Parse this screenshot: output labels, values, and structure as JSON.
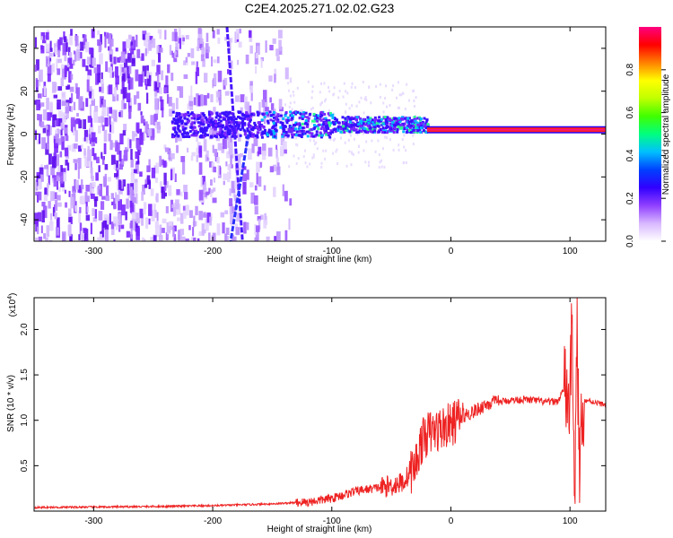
{
  "title": "C2E4.2025.271.02.02.G23",
  "chart_data": [
    {
      "type": "heatmap",
      "xlabel": "Height of straight line (km)",
      "ylabel": "Frequency (Hz)",
      "xlim": [
        -350,
        130
      ],
      "ylim": [
        -50,
        50
      ],
      "xticks": [
        -300,
        -200,
        -100,
        0,
        100
      ],
      "yticks": [
        -40,
        -20,
        0,
        20,
        40
      ],
      "colorbar": {
        "label": "Normalized spectral amplitude",
        "range": [
          0,
          1
        ],
        "ticks": [
          "0.0",
          "0.2",
          "0.4",
          "0.6",
          "0.8"
        ],
        "colors": [
          "#ffffff",
          "#d8b8ff",
          "#9040ff",
          "#3000ff",
          "#0040ff",
          "#00c0ff",
          "#00ff80",
          "#40ff00",
          "#c0ff00",
          "#ffff00",
          "#ff8000",
          "#ff0000",
          "#ff0080"
        ]
      },
      "features": {
        "tone_line": {
          "x_range": [
            -20,
            130
          ],
          "frequency": 2
        },
        "signal_band": {
          "x_range": [
            -235,
            -20
          ],
          "frequency_center": 5,
          "half_width": 6
        },
        "chirp_a": {
          "points": [
            [
              -188,
              50
            ],
            [
              -175,
              -50
            ]
          ]
        },
        "chirp_b": {
          "points": [
            [
              -170,
              0
            ],
            [
              -185,
              -50
            ]
          ]
        }
      }
    },
    {
      "type": "line",
      "xlabel": "Height of straight line (km)",
      "ylabel": "SNR (10 * v/v)",
      "yscale_label": "(x10",
      "yscale_exp": "4",
      "xlim": [
        -350,
        130
      ],
      "ylim": [
        0,
        2.35
      ],
      "xticks": [
        -300,
        -200,
        -100,
        0,
        100
      ],
      "yticks": [
        0.5,
        1.0,
        1.5,
        2.0
      ],
      "ytick_labels": [
        "0.5",
        "1.0",
        "1.5",
        "2.0"
      ],
      "series": [
        {
          "color": "#ee2222",
          "x": [
            -350,
            -300,
            -250,
            -200,
            -150,
            -120,
            -100,
            -80,
            -60,
            -50,
            -40,
            -30,
            -25,
            -20,
            -10,
            0,
            10,
            20,
            30,
            40,
            50,
            60,
            70,
            80,
            90,
            95,
            100,
            102,
            104,
            106,
            108,
            110,
            115,
            120,
            130
          ],
          "y": [
            0.04,
            0.045,
            0.05,
            0.06,
            0.08,
            0.1,
            0.14,
            0.22,
            0.26,
            0.28,
            0.32,
            0.5,
            0.75,
            0.85,
            0.9,
            0.95,
            1.05,
            1.1,
            1.18,
            1.2,
            1.22,
            1.23,
            1.22,
            1.2,
            1.21,
            1.35,
            1.2,
            2.2,
            0.1,
            1.9,
            0.4,
            1.2,
            1.22,
            1.2,
            1.17
          ]
        }
      ]
    }
  ]
}
